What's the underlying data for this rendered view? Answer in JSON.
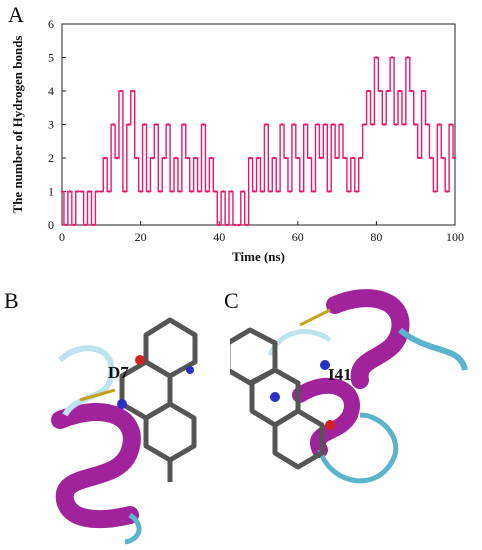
{
  "panels": {
    "a": "A",
    "b": "B",
    "c": "C"
  },
  "residues": {
    "b": "D7",
    "c": "I41"
  },
  "colors": {
    "series": "#e8176b",
    "helix": "#a0239b",
    "coil": "#5ab4cc",
    "stick": "#555555"
  },
  "chart_data": {
    "type": "line",
    "xlabel": "Time (ns)",
    "ylabel": "The number of Hydrogen bonds",
    "xlim": [
      0,
      100
    ],
    "ylim": [
      0,
      6
    ],
    "xticks": [
      0,
      20,
      40,
      60,
      80,
      100
    ],
    "yticks": [
      0,
      1,
      2,
      3,
      4,
      5,
      6
    ],
    "grid": false,
    "series": [
      {
        "x": [
          0,
          1,
          2,
          3,
          4,
          5,
          6,
          7,
          8,
          9,
          10,
          11,
          12,
          13,
          14,
          15,
          16,
          17,
          18,
          19,
          20,
          21,
          22,
          23,
          24,
          25,
          26,
          27,
          28,
          29,
          30,
          31,
          32,
          33,
          34,
          35,
          36,
          37,
          38,
          39,
          40,
          41,
          42,
          43,
          44,
          45,
          46,
          47,
          48,
          49,
          50,
          51,
          52,
          53,
          54,
          55,
          56,
          57,
          58,
          59,
          60,
          61,
          62,
          63,
          64,
          65,
          66,
          67,
          68,
          69,
          70,
          71,
          72,
          73,
          74,
          75,
          76,
          77,
          78,
          79,
          80,
          81,
          82,
          83,
          84,
          85,
          86,
          87,
          88,
          89,
          90,
          91,
          92,
          93,
          94,
          95,
          96,
          97,
          98,
          99,
          100
        ],
        "values": [
          1,
          0,
          1,
          0,
          1,
          1,
          0,
          1,
          0,
          1,
          1,
          2,
          1,
          3,
          2,
          4,
          1,
          3,
          4,
          2,
          1,
          3,
          1,
          2,
          3,
          1,
          2,
          3,
          1,
          2,
          1,
          3,
          2,
          1,
          2,
          1,
          3,
          1,
          2,
          1,
          0,
          1,
          0,
          1,
          0,
          0,
          1,
          0,
          2,
          1,
          2,
          1,
          3,
          1,
          2,
          1,
          3,
          2,
          1,
          3,
          2,
          1,
          3,
          2,
          1,
          3,
          2,
          3,
          1,
          3,
          2,
          3,
          2,
          1,
          2,
          1,
          2,
          3,
          4,
          3,
          5,
          4,
          3,
          4,
          5,
          3,
          4,
          3,
          5,
          4,
          3,
          2,
          4,
          3,
          2,
          1,
          3,
          2,
          1,
          3,
          2
        ]
      }
    ]
  }
}
